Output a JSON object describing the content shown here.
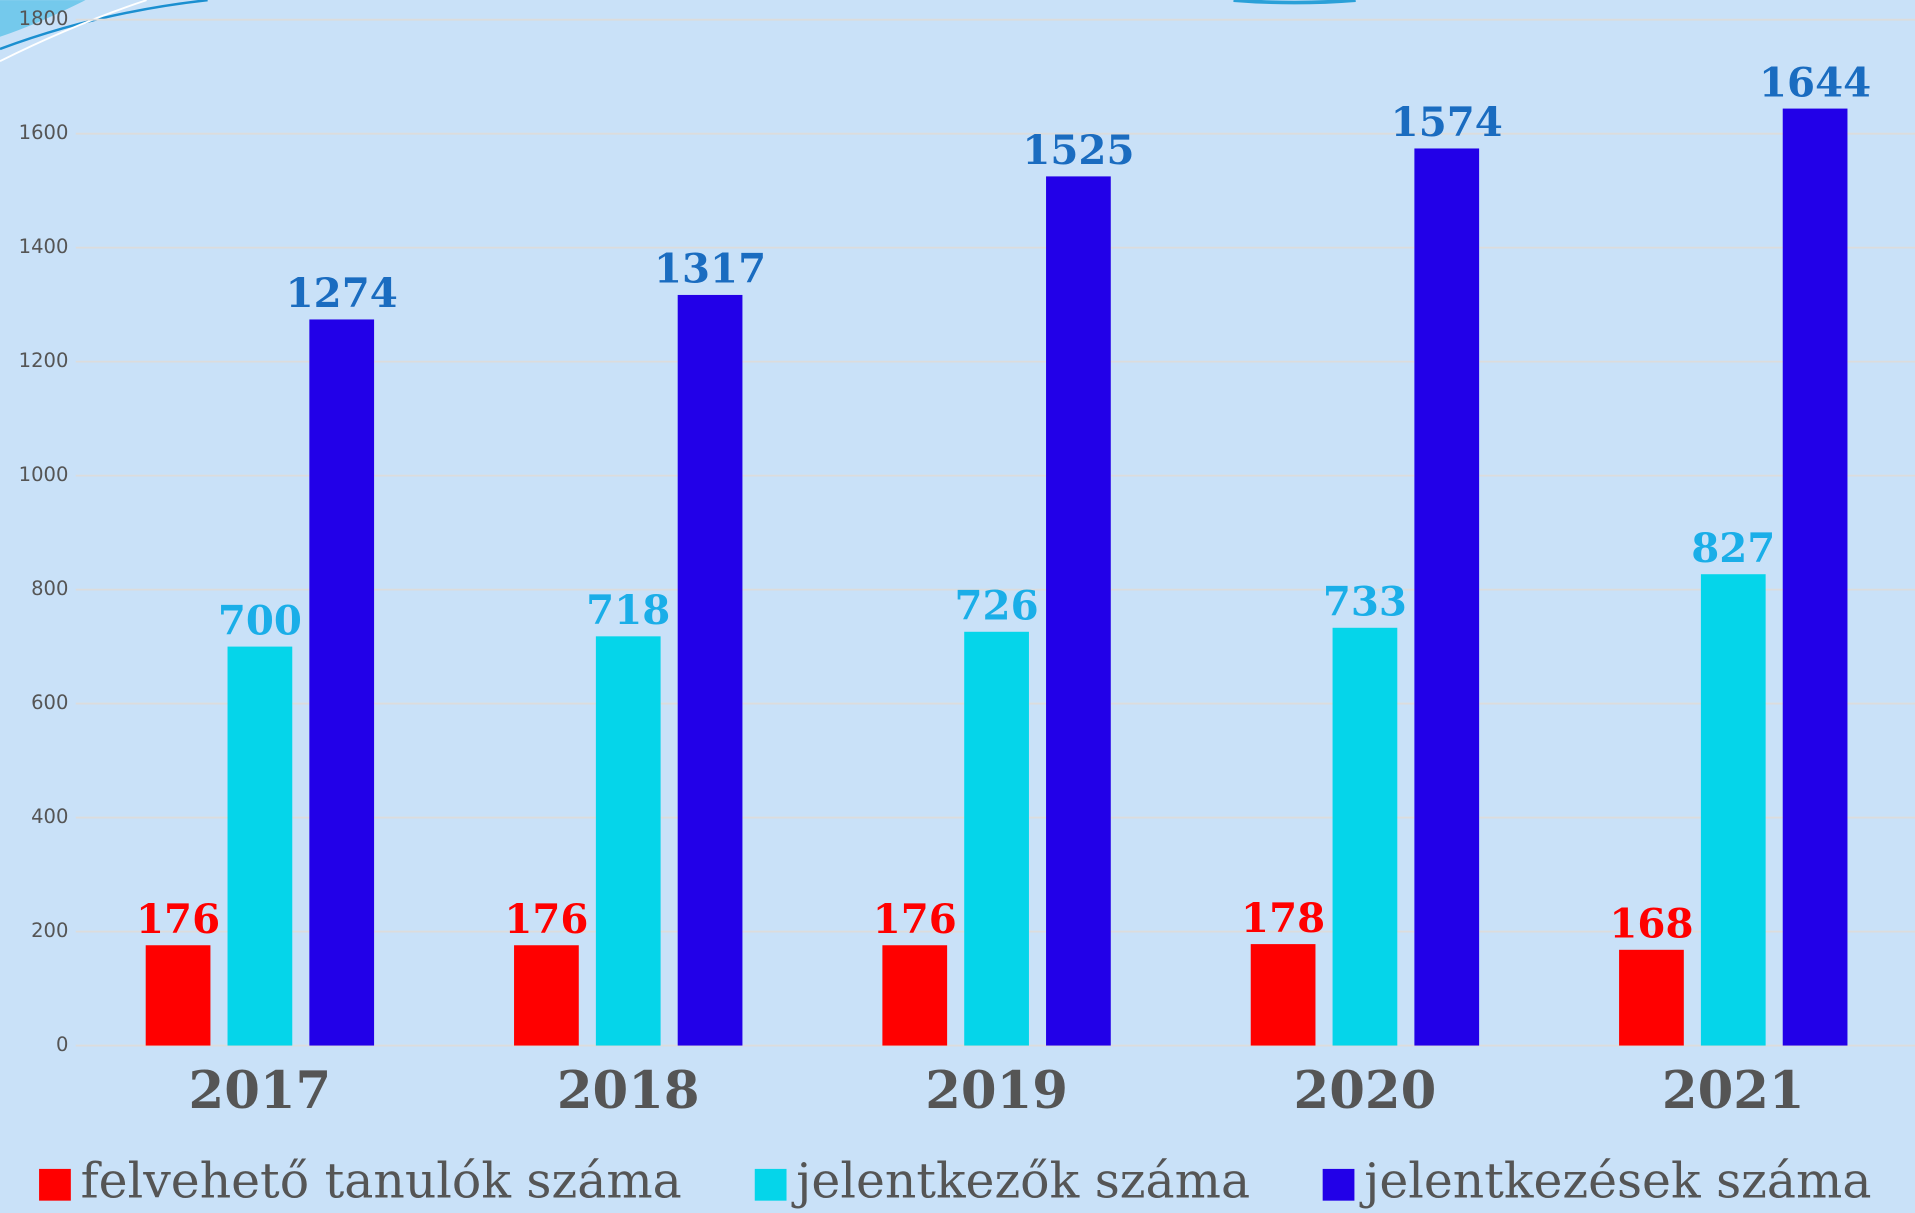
{
  "chart_data": {
    "type": "bar",
    "categories": [
      "2017",
      "2018",
      "2019",
      "2020",
      "2021"
    ],
    "series": [
      {
        "name": "felvehető tanulók száma",
        "color": "#ff0000",
        "label_color": "#ff0000",
        "values": [
          176,
          176,
          176,
          178,
          168
        ]
      },
      {
        "name": "jelentkezők száma",
        "color": "#05d5ea",
        "label_color": "#1aaee8",
        "values": [
          700,
          718,
          726,
          733,
          827
        ]
      },
      {
        "name": "jelentkezések száma",
        "color": "#2200e8",
        "label_color": "#1a6cc0",
        "values": [
          1274,
          1317,
          1525,
          1574,
          1644
        ]
      }
    ],
    "ylim": [
      0,
      1800
    ],
    "yticks": [
      0,
      200,
      400,
      600,
      800,
      1000,
      1200,
      1400,
      1600,
      1800
    ],
    "grid": true,
    "legend": "bottom"
  }
}
